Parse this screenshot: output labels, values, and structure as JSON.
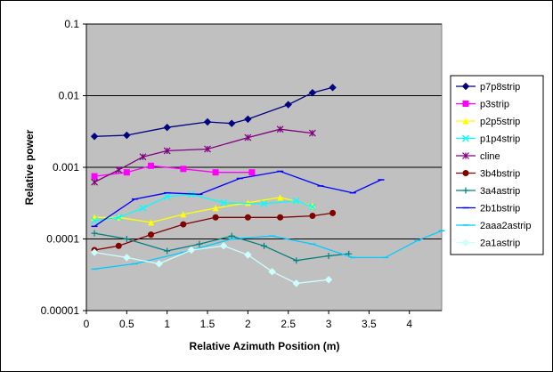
{
  "chart_data": {
    "type": "line",
    "title": "",
    "xlabel": "Relative Azimuth Position (m)",
    "ylabel": "Relative power",
    "x_scale": "linear",
    "y_scale": "log",
    "xlim": [
      0,
      4.4
    ],
    "ylim": [
      1e-05,
      0.1
    ],
    "x_ticks": [
      "0",
      "0.5",
      "1",
      "1.5",
      "2",
      "2.5",
      "3",
      "3.5",
      "4"
    ],
    "y_ticks": [
      "0.00001",
      "0.0001",
      "0.001",
      "0.01",
      "0.1"
    ],
    "grid": "horizontal major gridlines",
    "legend_position": "right",
    "plot_background": "#c0c0c0",
    "series": [
      {
        "name": "p7p8strip",
        "color": "#000080",
        "marker": "diamond",
        "x": [
          0.1,
          0.5,
          1.0,
          1.5,
          1.8,
          2.0,
          2.5,
          2.8,
          3.05
        ],
        "y": [
          0.0027,
          0.0028,
          0.0036,
          0.0043,
          0.0041,
          0.0047,
          0.0075,
          0.011,
          0.013
        ]
      },
      {
        "name": "p3strip",
        "color": "#ff00ff",
        "marker": "square",
        "x": [
          0.1,
          0.5,
          0.8,
          1.2,
          1.6,
          2.05
        ],
        "y": [
          0.00075,
          0.00085,
          0.00105,
          0.00095,
          0.00085,
          0.00085
        ]
      },
      {
        "name": "p2p5strip",
        "color": "#ffff00",
        "marker": "triangle",
        "x": [
          0.1,
          0.4,
          0.8,
          1.2,
          1.6,
          2.0,
          2.4,
          2.8
        ],
        "y": [
          0.0002,
          0.0002,
          0.00017,
          0.00022,
          0.00027,
          0.00032,
          0.00038,
          0.00029
        ]
      },
      {
        "name": "p1p4strip",
        "color": "#00ffff",
        "marker": "x",
        "x": [
          0.1,
          0.4,
          0.7,
          1.0,
          1.3,
          1.7,
          2.2,
          2.6,
          2.8
        ],
        "y": [
          0.00018,
          0.0002,
          0.00027,
          0.00039,
          0.00042,
          0.00032,
          0.00031,
          0.00034,
          0.00028
        ]
      },
      {
        "name": "cline",
        "color": "#800080",
        "marker": "star",
        "x": [
          0.1,
          0.4,
          0.7,
          1.0,
          1.5,
          2.0,
          2.4,
          2.8
        ],
        "y": [
          0.00062,
          0.00092,
          0.0014,
          0.0017,
          0.0018,
          0.0026,
          0.0034,
          0.003
        ]
      },
      {
        "name": "3b4bstrip",
        "color": "#800000",
        "marker": "circle",
        "x": [
          0.1,
          0.4,
          0.8,
          1.2,
          1.6,
          2.0,
          2.4,
          2.8,
          3.05
        ],
        "y": [
          7e-05,
          8e-05,
          0.000115,
          0.00016,
          0.0002,
          0.0002,
          0.0002,
          0.00021,
          0.00023
        ]
      },
      {
        "name": "3a4astrip",
        "color": "#008080",
        "marker": "plus",
        "x": [
          0.1,
          0.5,
          1.0,
          1.4,
          1.8,
          2.2,
          2.6,
          3.0,
          3.25
        ],
        "y": [
          0.00012,
          0.0001,
          6.8e-05,
          8.5e-05,
          0.00011,
          8e-05,
          5e-05,
          5.8e-05,
          6.2e-05
        ]
      },
      {
        "name": "2b1bstrip",
        "color": "#0000ff",
        "marker": "dash",
        "x": [
          0.1,
          0.6,
          1.0,
          1.4,
          1.9,
          2.4,
          2.9,
          3.3,
          3.65
        ],
        "y": [
          0.00015,
          0.00036,
          0.00044,
          0.00042,
          0.0007,
          0.00088,
          0.00055,
          0.00044,
          0.00067
        ]
      },
      {
        "name": "2aaa2astrip",
        "color": "#00ccff",
        "marker": "dash",
        "x": [
          0.1,
          0.6,
          1.2,
          1.8,
          2.3,
          2.8,
          3.3,
          3.7,
          4.1,
          4.4
        ],
        "y": [
          3.8e-05,
          4.5e-05,
          6.5e-05,
          0.0001,
          0.00011,
          8.5e-05,
          5.5e-05,
          5.5e-05,
          9.5e-05,
          0.00013
        ]
      },
      {
        "name": "2a1astrip",
        "color": "#ccffff",
        "marker": "diamond",
        "x": [
          0.1,
          0.5,
          0.9,
          1.3,
          1.7,
          2.0,
          2.3,
          2.6,
          3.0
        ],
        "y": [
          6.5e-05,
          5.5e-05,
          4.5e-05,
          7e-05,
          8e-05,
          6e-05,
          3.5e-05,
          2.4e-05,
          2.7e-05
        ]
      }
    ]
  }
}
